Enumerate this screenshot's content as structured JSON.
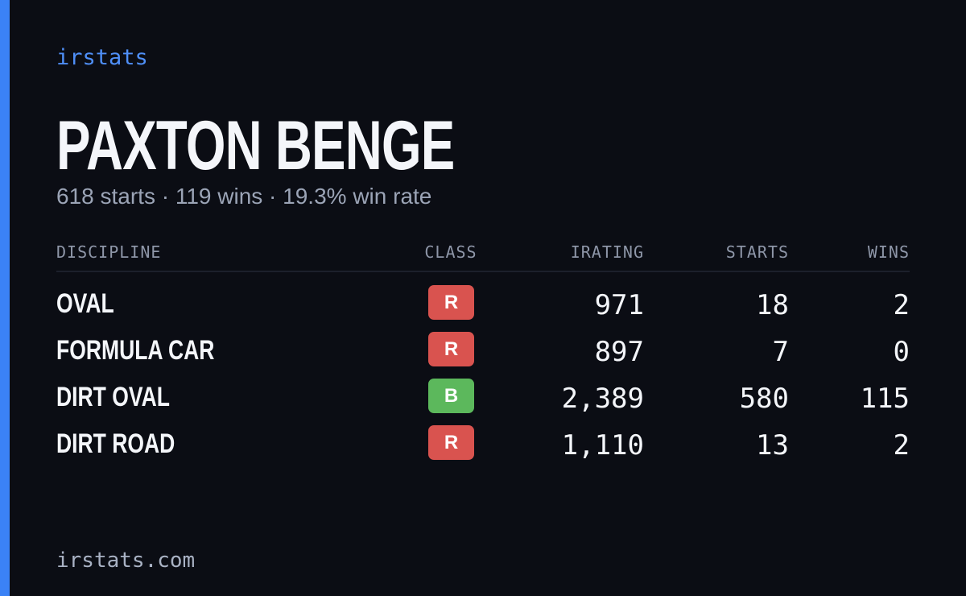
{
  "brand": "irstats",
  "name": "PAXTON BENGE",
  "summary": "618 starts · 119 wins · 19.3% win rate",
  "table": {
    "headers": [
      "DISCIPLINE",
      "CLASS",
      "IRATING",
      "STARTS",
      "WINS"
    ],
    "rows": [
      {
        "discipline": "OVAL",
        "class": "R",
        "class_color": "#d9534f",
        "irating": "971",
        "starts": "18",
        "wins": "2"
      },
      {
        "discipline": "FORMULA CAR",
        "class": "R",
        "class_color": "#d9534f",
        "irating": "897",
        "starts": "7",
        "wins": "0"
      },
      {
        "discipline": "DIRT OVAL",
        "class": "B",
        "class_color": "#5cb85c",
        "irating": "2,389",
        "starts": "580",
        "wins": "115"
      },
      {
        "discipline": "DIRT ROAD",
        "class": "R",
        "class_color": "#d9534f",
        "irating": "1,110",
        "starts": "13",
        "wins": "2"
      }
    ]
  },
  "footer": "irstats.com"
}
